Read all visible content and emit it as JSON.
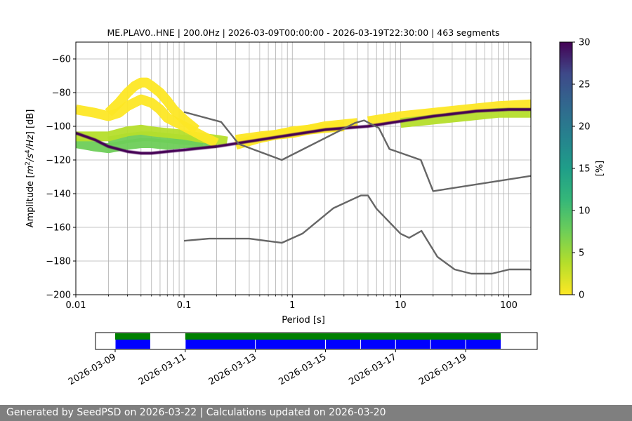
{
  "chart_data": [
    {
      "type": "heatmap",
      "title": "ME.PLAV0..HNE | 200.0Hz | 2026-03-09T00:00:00 - 2026-03-19T22:30:00 | 463 segments",
      "xlabel": "Period [s]",
      "ylabel_prefix": "Amplitude [",
      "ylabel_suffix": "] [dB]",
      "x_scale": "log",
      "xlim": [
        0.01,
        160
      ],
      "ylim": [
        -200,
        -50
      ],
      "x_ticks": [
        {
          "value": 0.01,
          "label": "0.01"
        },
        {
          "value": 0.1,
          "label": "0.1"
        },
        {
          "value": 1,
          "label": "1"
        },
        {
          "value": 10,
          "label": "10"
        },
        {
          "value": 100,
          "label": "100"
        }
      ],
      "y_ticks": [
        {
          "value": -60,
          "label": "−60"
        },
        {
          "value": -80,
          "label": "−80"
        },
        {
          "value": -100,
          "label": "−100"
        },
        {
          "value": -120,
          "label": "−120"
        },
        {
          "value": -140,
          "label": "−140"
        },
        {
          "value": -160,
          "label": "−160"
        },
        {
          "value": -180,
          "label": "−180"
        },
        {
          "value": -200,
          "label": "−200"
        }
      ],
      "grid": true,
      "colormap": "viridis_r",
      "colorbar": {
        "label": "[%]",
        "range": [
          0,
          30
        ],
        "ticks": [
          {
            "value": 0,
            "label": "0"
          },
          {
            "value": 5,
            "label": "5"
          },
          {
            "value": 10,
            "label": "10"
          },
          {
            "value": 15,
            "label": "15"
          },
          {
            "value": 20,
            "label": "20"
          },
          {
            "value": 25,
            "label": "25"
          },
          {
            "value": 30,
            "label": "30"
          }
        ]
      },
      "psd_mode_curve": {
        "period": [
          0.01,
          0.015,
          0.02,
          0.03,
          0.04,
          0.05,
          0.07,
          0.1,
          0.2,
          0.5,
          1,
          2,
          5,
          10,
          20,
          50,
          100,
          160
        ],
        "db": [
          -104,
          -108,
          -112,
          -115,
          -116,
          -116,
          -115,
          -114,
          -112,
          -108,
          -105,
          -102,
          -100,
          -97,
          -94,
          -91,
          -90,
          -90
        ]
      },
      "psd_spread": [
        {
          "period": [
            0.01,
            0.015,
            0.02,
            0.03,
            0.04,
            0.05,
            0.07,
            0.1,
            0.15,
            0.2
          ],
          "db": [
            -110,
            -112,
            -113,
            -111,
            -110,
            -110,
            -111,
            -110,
            -110,
            -110
          ],
          "percent": 6
        },
        {
          "period": [
            0.02,
            0.03,
            0.04,
            0.05,
            0.07,
            0.1,
            0.15
          ],
          "db": [
            -109,
            -107,
            -106,
            -106,
            -107,
            -108,
            -109
          ],
          "percent": 9
        },
        {
          "period": [
            0.01,
            0.015,
            0.02,
            0.03,
            0.04,
            0.05,
            0.07,
            0.1,
            0.15,
            0.2,
            0.25
          ],
          "db": [
            -106,
            -106,
            -106,
            -103,
            -102,
            -103,
            -104,
            -105,
            -107,
            -108,
            -109
          ],
          "percent": 2
        },
        {
          "period": [
            0.01,
            0.015,
            0.02,
            0.025,
            0.03,
            0.04,
            0.05,
            0.06,
            0.07,
            0.1,
            0.15,
            0.2
          ],
          "db": [
            -90,
            -92,
            -94,
            -92,
            -88,
            -84,
            -86,
            -90,
            -95,
            -100,
            -106,
            -110
          ],
          "percent": 1
        },
        {
          "period": [
            0.02,
            0.025,
            0.03,
            0.035,
            0.04,
            0.045,
            0.05,
            0.06,
            0.07,
            0.08,
            0.1,
            0.13
          ],
          "db": [
            -92,
            -86,
            -80,
            -76,
            -74,
            -74,
            -76,
            -80,
            -85,
            -90,
            -96,
            -102
          ],
          "percent": 1
        },
        {
          "period": [
            0.3,
            0.5,
            1,
            2,
            3
          ],
          "db": [
            -111,
            -107,
            -103,
            -101,
            -100
          ],
          "percent": 1
        },
        {
          "period": [
            0.3,
            0.5,
            1,
            2,
            4
          ],
          "db": [
            -108,
            -106,
            -104,
            -100,
            -98
          ],
          "percent": 1
        },
        {
          "period": [
            5,
            10,
            20,
            40,
            80,
            160
          ],
          "db": [
            -97,
            -94,
            -92,
            -90,
            -88,
            -87
          ],
          "percent": 1
        },
        {
          "period": [
            10,
            20,
            40,
            80,
            160
          ],
          "db": [
            -98,
            -96,
            -94,
            -92,
            -92
          ],
          "percent": 3
        }
      ],
      "high_noise_model": {
        "period": [
          0.1,
          0.22,
          0.32,
          0.8,
          3.8,
          4.6,
          6.3,
          7.9,
          15.4,
          20,
          354.8
        ],
        "db": [
          -91.5,
          -97.4,
          -110.5,
          -120,
          -98,
          -96.5,
          -101,
          -113.5,
          -120,
          -138.5,
          -126
        ]
      },
      "low_noise_model": {
        "period": [
          0.1,
          0.17,
          0.4,
          0.8,
          1.24,
          2.4,
          4.3,
          5,
          6,
          10,
          12,
          15.6,
          21.9,
          31.6,
          45,
          70,
          101,
          154,
          328
        ],
        "db": [
          -168,
          -166.7,
          -166.7,
          -169.2,
          -163.7,
          -148.6,
          -141.1,
          -141.1,
          -149,
          -163.8,
          -166.2,
          -162.1,
          -177.5,
          -185,
          -187.5,
          -187.5,
          -185,
          -185,
          -187.5
        ]
      }
    },
    {
      "type": "timeline",
      "x_ticks": [
        "2026-03-09",
        "2026-03-11",
        "2026-03-13",
        "2026-03-15",
        "2026-03-17",
        "2026-03-19"
      ],
      "range_days": [
        0,
        12
      ],
      "coverage_color": "#008000",
      "segment_color": "#0000ff",
      "coverage": [
        [
          0,
          1
        ],
        [
          2,
          11
        ]
      ],
      "segments": [
        [
          0,
          1
        ],
        [
          2,
          4
        ],
        [
          4,
          6
        ],
        [
          6,
          7
        ],
        [
          7,
          8
        ],
        [
          8,
          9
        ],
        [
          9,
          10
        ],
        [
          10,
          11
        ]
      ]
    }
  ],
  "footer": {
    "text": "Generated by SeedPSD on 2026-03-22 | Calculations updated on 2026-03-20"
  }
}
